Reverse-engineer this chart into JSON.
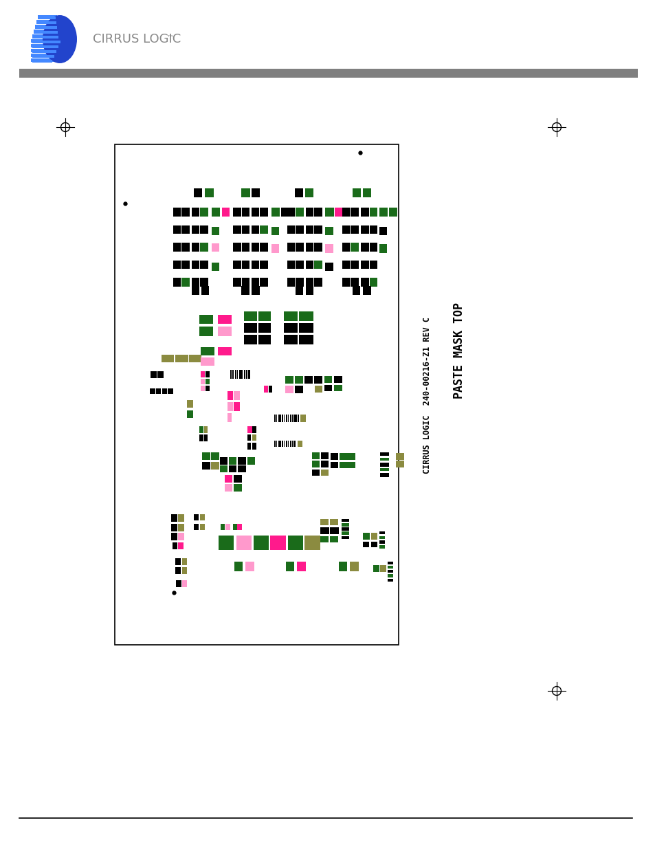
{
  "page_bg": "#ffffff",
  "header_bar_color": "#7f7f7f",
  "colors": {
    "black": "#000000",
    "green": "#1a6b1a",
    "pink": "#ff1a8c",
    "lightpink": "#ff99cc",
    "olive": "#8b8b40",
    "blue": "#2244cc",
    "lightblue": "#4488ff",
    "gray": "#888888"
  },
  "side_label1": "CIRRUS LOGIC  240-00216-Z1 REV C",
  "side_label2": "PASTE MASK TOP"
}
